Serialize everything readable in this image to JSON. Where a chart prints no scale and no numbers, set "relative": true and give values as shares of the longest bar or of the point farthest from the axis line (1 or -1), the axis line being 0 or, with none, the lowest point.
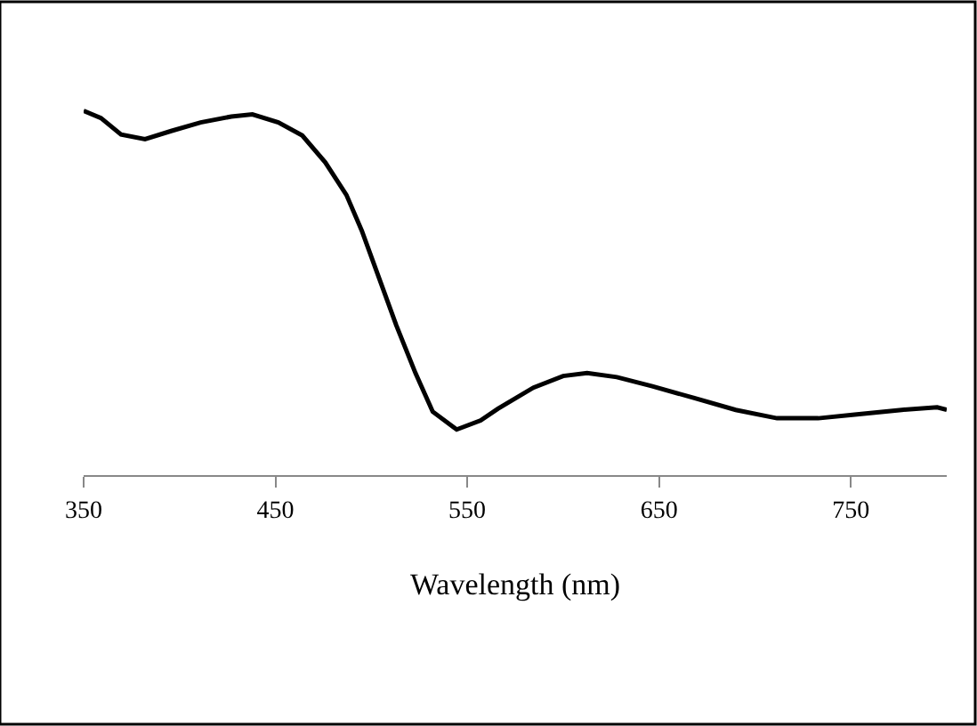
{
  "chart_data": {
    "type": "line",
    "relative": true,
    "xlabel": "Wavelength (nm)",
    "xlim": [
      350,
      800
    ],
    "xticks": [
      350,
      450,
      550,
      650,
      750
    ],
    "marker": "none",
    "line_style": "solid",
    "series": [
      {
        "color": "#000000",
        "x": [
          350,
          359,
          369.5,
          382,
          396,
          411,
          427,
          438,
          451.5,
          464,
          476,
          487,
          495,
          504,
          513,
          523,
          532,
          544.5,
          557,
          566,
          584.5,
          600,
          612.5,
          628,
          646.5,
          668,
          690,
          711.5,
          733,
          752,
          776.5,
          795,
          800
        ],
        "values": [
          1.0,
          0.98,
          0.935,
          0.922,
          0.945,
          0.968,
          0.984,
          0.99,
          0.968,
          0.932,
          0.858,
          0.769,
          0.671,
          0.541,
          0.411,
          0.28,
          0.174,
          0.125,
          0.15,
          0.182,
          0.24,
          0.272,
          0.28,
          0.269,
          0.244,
          0.212,
          0.179,
          0.156,
          0.156,
          0.166,
          0.179,
          0.186,
          0.179
        ]
      }
    ]
  }
}
